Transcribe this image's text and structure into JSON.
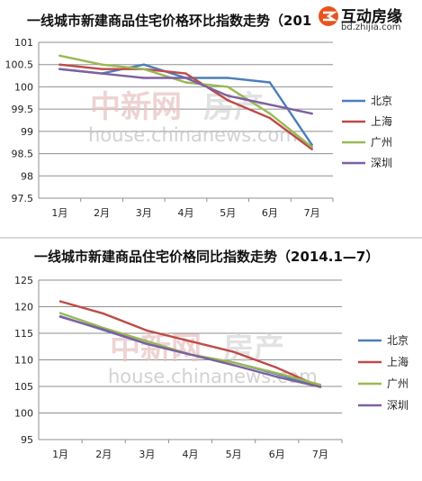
{
  "watermarks": {
    "chinese_text": "中新网",
    "url_text": "house.chinanews.com",
    "fangchan_text": "房产"
  },
  "logo": {
    "name": "互动房缘",
    "url": "bd.zhijia.com"
  },
  "colors": {
    "beijing": "#4a7ebb",
    "shanghai": "#be4b48",
    "guangzhou": "#98b954",
    "shenzhen": "#7d60a0"
  },
  "chart_data": [
    {
      "type": "line",
      "title": "一线城市新建商品住宅价格环比指数走势（201",
      "categories": [
        "1月",
        "2月",
        "3月",
        "4月",
        "5月",
        "6月",
        "7月"
      ],
      "ylim": [
        97.5,
        101
      ],
      "yticks": [
        "97.5",
        "98",
        "98.5",
        "99",
        "99.5",
        "100",
        "100.5",
        "101"
      ],
      "grid": true,
      "legend": "right",
      "series": [
        {
          "name": "北京",
          "color": "#4a7ebb",
          "values": [
            100.4,
            100.3,
            100.5,
            100.2,
            100.2,
            100.1,
            98.7
          ]
        },
        {
          "name": "上海",
          "color": "#be4b48",
          "values": [
            100.5,
            100.4,
            100.4,
            100.3,
            99.7,
            99.3,
            98.6
          ]
        },
        {
          "name": "广州",
          "color": "#98b954",
          "values": [
            100.7,
            100.5,
            100.4,
            100.1,
            100.0,
            99.4,
            98.65
          ]
        },
        {
          "name": "深圳",
          "color": "#7d60a0",
          "values": [
            100.4,
            100.3,
            100.2,
            100.2,
            99.8,
            99.6,
            99.4
          ]
        }
      ]
    },
    {
      "type": "line",
      "title": "一线城市新建商品住宅价格同比指数走势（2014.1—7）",
      "categories": [
        "1月",
        "2月",
        "3月",
        "4月",
        "5月",
        "6月",
        "7月"
      ],
      "ylim": [
        95,
        125
      ],
      "yticks": [
        "95",
        "100",
        "105",
        "110",
        "115",
        "120",
        "125"
      ],
      "grid": true,
      "legend": "right",
      "series": [
        {
          "name": "北京",
          "color": "#4a7ebb",
          "values": [
            118.2,
            115.6,
            113.0,
            111.0,
            109.5,
            107.3,
            105.0
          ]
        },
        {
          "name": "上海",
          "color": "#be4b48",
          "values": [
            121.0,
            118.7,
            115.5,
            113.5,
            111.5,
            108.5,
            104.9
          ]
        },
        {
          "name": "广州",
          "color": "#98b954",
          "values": [
            118.8,
            116.0,
            113.5,
            111.0,
            109.5,
            107.5,
            105.3
          ]
        },
        {
          "name": "深圳",
          "color": "#7d60a0",
          "values": [
            118.1,
            115.7,
            113.0,
            111.0,
            109.0,
            106.8,
            104.9
          ]
        }
      ]
    }
  ]
}
